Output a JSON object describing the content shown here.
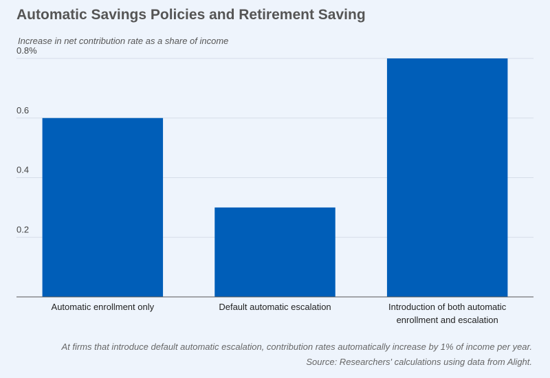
{
  "chart_data": {
    "type": "bar",
    "title": "Automatic Savings Policies and Retirement Saving",
    "ylabel": "Increase in net contribution rate as a share of income",
    "xlabel": "",
    "ylim": [
      0,
      0.8
    ],
    "yticks": [
      {
        "value": 0.2,
        "label": "0.2"
      },
      {
        "value": 0.4,
        "label": "0.4"
      },
      {
        "value": 0.6,
        "label": "0.6"
      },
      {
        "value": 0.8,
        "label": "0.8%"
      }
    ],
    "categories": [
      [
        "Automatic enrollment only"
      ],
      [
        "Default automatic escalation"
      ],
      [
        "Introduction of both automatic",
        "enrollment and escalation"
      ]
    ],
    "values": [
      0.6,
      0.3,
      0.8
    ],
    "grid": true,
    "bar_color": "#005eb8"
  },
  "footnotes": {
    "note": "At firms that introduce default automatic escalation, contribution rates automatically increase by 1% of income per year.",
    "source": "Source: Researchers' calculations using data from Alight."
  }
}
